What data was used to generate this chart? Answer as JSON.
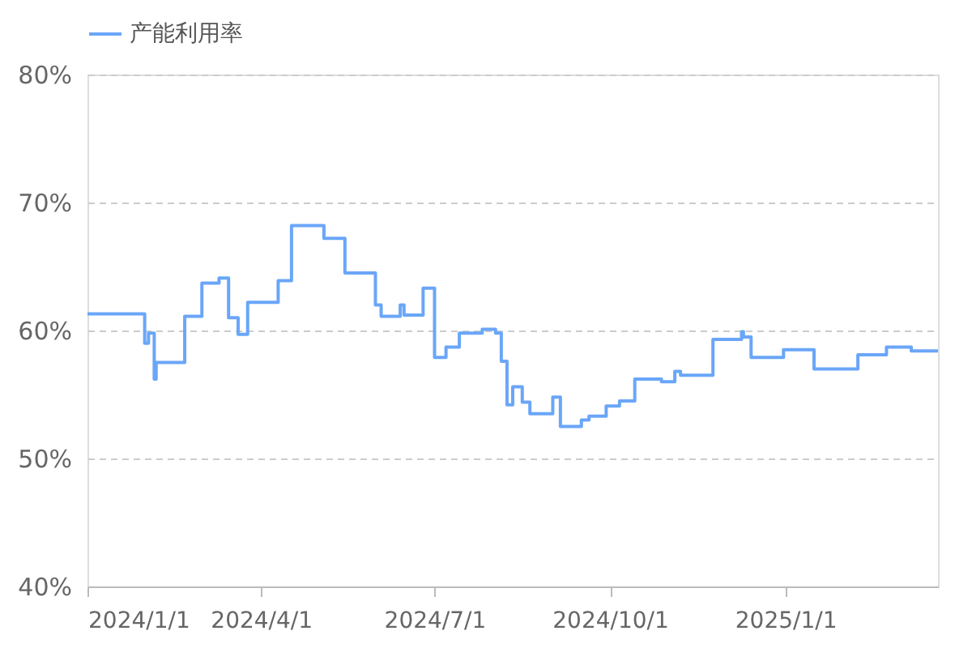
{
  "chart_data": {
    "type": "step",
    "x": [
      "2024-01-01",
      "2024-01-31",
      "2024-02-02",
      "2024-02-05",
      "2024-02-06",
      "2024-02-21",
      "2024-03-01",
      "2024-03-10",
      "2024-03-15",
      "2024-03-20",
      "2024-03-25",
      "2024-04-10",
      "2024-04-17",
      "2024-05-04",
      "2024-05-15",
      "2024-05-31",
      "2024-06-03",
      "2024-06-13",
      "2024-06-15",
      "2024-06-25",
      "2024-07-01",
      "2024-07-07",
      "2024-07-14",
      "2024-07-26",
      "2024-08-02",
      "2024-08-05",
      "2024-08-08",
      "2024-08-11",
      "2024-08-16",
      "2024-08-20",
      "2024-09-01",
      "2024-09-05",
      "2024-09-16",
      "2024-09-20",
      "2024-09-29",
      "2024-10-06",
      "2024-10-14",
      "2024-10-28",
      "2024-11-04",
      "2024-11-07",
      "2024-11-24",
      "2024-12-09",
      "2024-12-10",
      "2024-12-14",
      "2024-12-31",
      "2025-01-16",
      "2025-02-08",
      "2025-02-23",
      "2025-03-08",
      "2025-03-22"
    ],
    "series": [
      {
        "name": "产能利用率",
        "color": "#6aa6f8",
        "values": [
          61.3,
          59.0,
          59.8,
          56.2,
          57.5,
          61.1,
          63.7,
          64.1,
          61.0,
          59.7,
          62.2,
          63.9,
          68.2,
          67.2,
          64.5,
          62.0,
          61.1,
          62.0,
          61.2,
          63.3,
          57.9,
          58.7,
          59.8,
          60.1,
          59.8,
          57.6,
          54.2,
          55.6,
          54.4,
          53.5,
          54.8,
          52.5,
          53.0,
          53.3,
          54.1,
          54.5,
          56.2,
          56.0,
          56.8,
          56.5,
          59.3,
          59.9,
          59.5,
          57.9,
          58.5,
          57.0,
          58.1,
          58.7,
          58.4,
          58.4
        ]
      }
    ],
    "xlim": [
      "2024-01-01",
      "2025-03-22"
    ],
    "xticks": [
      {
        "value": "2024-01-01",
        "label": "2024/1/1"
      },
      {
        "value": "2024-04-01",
        "label": "2024/4/1"
      },
      {
        "value": "2024-07-01",
        "label": "2024/7/1"
      },
      {
        "value": "2024-10-01",
        "label": "2024/10/1"
      },
      {
        "value": "2025-01-01",
        "label": "2025/1/1"
      }
    ],
    "ylim": [
      40,
      80
    ],
    "yticks": [
      {
        "value": 40,
        "label": "40%"
      },
      {
        "value": 50,
        "label": "50%"
      },
      {
        "value": 60,
        "label": "60%"
      },
      {
        "value": 70,
        "label": "70%"
      },
      {
        "value": 80,
        "label": "80%"
      }
    ],
    "grid": "y",
    "legend": "top"
  }
}
